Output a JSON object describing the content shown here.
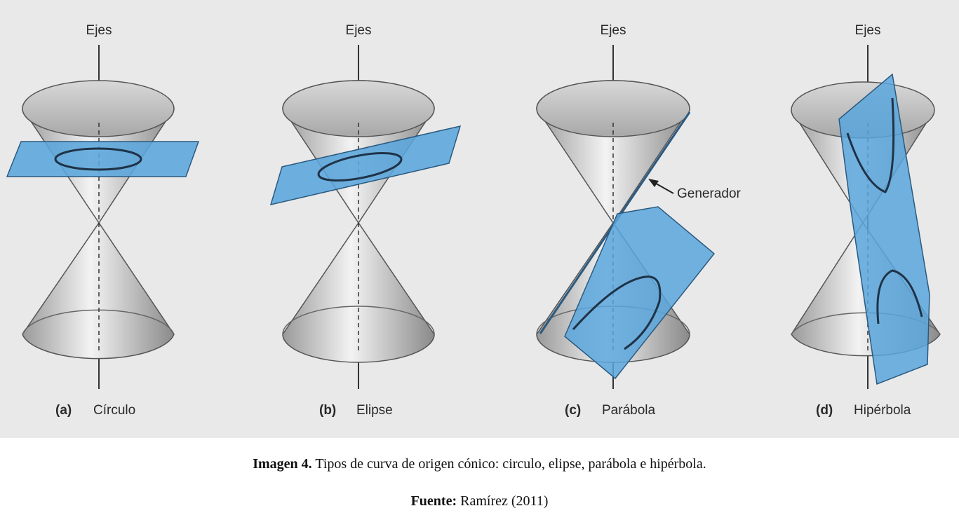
{
  "figure": {
    "axis_label": "Ejes",
    "panels": [
      {
        "letter": "(a)",
        "name": "Círculo"
      },
      {
        "letter": "(b)",
        "name": "Elipse"
      },
      {
        "letter": "(c)",
        "name": "Parábola"
      },
      {
        "letter": "(d)",
        "name": "Hipérbola"
      }
    ],
    "generator_label": "Generador",
    "colors": {
      "plane": "#5aa6dc",
      "plane_edge": "#2b5a80",
      "cone_light": "#f4f4f4",
      "cone_dark": "#8e8e8e",
      "curve": "#1f3348",
      "background": "#e9e9e9"
    }
  },
  "caption": {
    "label": "Imagen 4.",
    "text": "Tipos de curva de origen cónico: circulo, elipse, parábola e hipérbola."
  },
  "source": {
    "label": "Fuente:",
    "text": "Ramírez (2011)"
  }
}
